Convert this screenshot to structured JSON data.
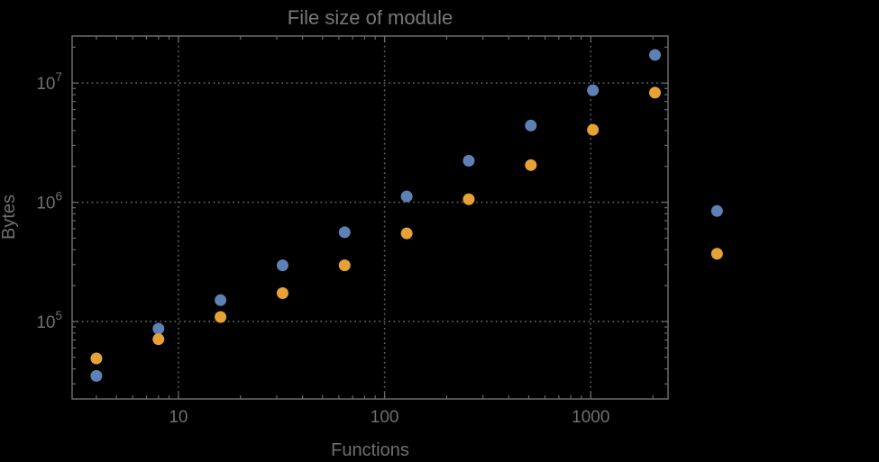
{
  "figure": {
    "background": "#000000",
    "frame_color": "#6b6b6b",
    "tick_color": "#6b6b6b",
    "grid_color": "#5f5f5f",
    "label_color": "#6f6f6f",
    "title_color": "#787878"
  },
  "chart_data": {
    "type": "scatter",
    "title": "File size of module",
    "xlabel": "Functions",
    "ylabel": "Bytes",
    "xscale": "log",
    "yscale": "log",
    "grid": "dotted gridlines at powers of 10, frame ticks inward, no legend",
    "legend": "none",
    "xlim": [
      3.05,
      2370
    ],
    "ylim": [
      22400,
      24800000
    ],
    "x_ticks": [
      10,
      100,
      1000
    ],
    "x_tick_labels": [
      "10",
      "100",
      "1000"
    ],
    "y_ticks": [
      100000,
      1000000,
      10000000
    ],
    "y_tick_labels": [
      {
        "base": "10",
        "exp": "5"
      },
      {
        "base": "10",
        "exp": "6"
      },
      {
        "base": "10",
        "exp": "7"
      }
    ],
    "note": "points at x=4096 fall outside the plot frame on the right and are drawn unclipped",
    "x": [
      4,
      8,
      16,
      32,
      64,
      128,
      256,
      512,
      1024,
      2048,
      4096
    ],
    "series": [
      {
        "name": "blue",
        "color": "#5E81B5",
        "values": [
          35000,
          87000,
          151000,
          296000,
          560000,
          1120000,
          2230000,
          4400000,
          8700000,
          17200000,
          845000
        ]
      },
      {
        "name": "orange",
        "color": "#E6A235",
        "values": [
          49000,
          71000,
          109000,
          173000,
          296000,
          548000,
          1060000,
          2050000,
          4050000,
          8300000,
          370000
        ]
      }
    ],
    "marker": {
      "shape": "circle",
      "radius_px": 6.5
    }
  }
}
